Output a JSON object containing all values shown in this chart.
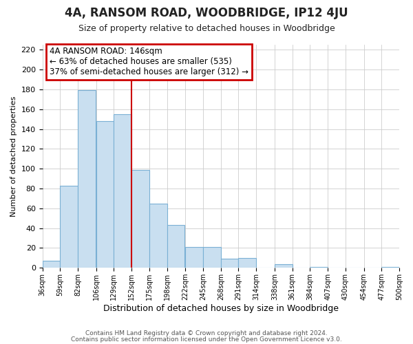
{
  "title": "4A, RANSOM ROAD, WOODBRIDGE, IP12 4JU",
  "subtitle": "Size of property relative to detached houses in Woodbridge",
  "xlabel": "Distribution of detached houses by size in Woodbridge",
  "ylabel": "Number of detached properties",
  "bar_left_edges": [
    36,
    59,
    82,
    106,
    129,
    152,
    175,
    198,
    222,
    245,
    268,
    291,
    314,
    338,
    361,
    384,
    407,
    430,
    454,
    477
  ],
  "bar_heights": [
    7,
    83,
    179,
    148,
    155,
    99,
    65,
    43,
    21,
    21,
    9,
    10,
    0,
    4,
    0,
    1,
    0,
    0,
    0,
    1
  ],
  "bin_width": 23,
  "bar_color": "#c9dff0",
  "bar_edge_color": "#7ab0d4",
  "ylim": [
    0,
    225
  ],
  "yticks": [
    0,
    20,
    40,
    60,
    80,
    100,
    120,
    140,
    160,
    180,
    200,
    220
  ],
  "x_tick_labels": [
    "36sqm",
    "59sqm",
    "82sqm",
    "106sqm",
    "129sqm",
    "152sqm",
    "175sqm",
    "198sqm",
    "222sqm",
    "245sqm",
    "268sqm",
    "291sqm",
    "314sqm",
    "338sqm",
    "361sqm",
    "384sqm",
    "407sqm",
    "430sqm",
    "454sqm",
    "477sqm",
    "500sqm"
  ],
  "vline_x": 152,
  "vline_color": "#cc0000",
  "annotation_title": "4A RANSOM ROAD: 146sqm",
  "annotation_line1": "← 63% of detached houses are smaller (535)",
  "annotation_line2": "37% of semi-detached houses are larger (312) →",
  "annotation_box_color": "#cc0000",
  "background_color": "#ffffff",
  "grid_color": "#cccccc",
  "footer1": "Contains HM Land Registry data © Crown copyright and database right 2024.",
  "footer2": "Contains public sector information licensed under the Open Government Licence v3.0."
}
